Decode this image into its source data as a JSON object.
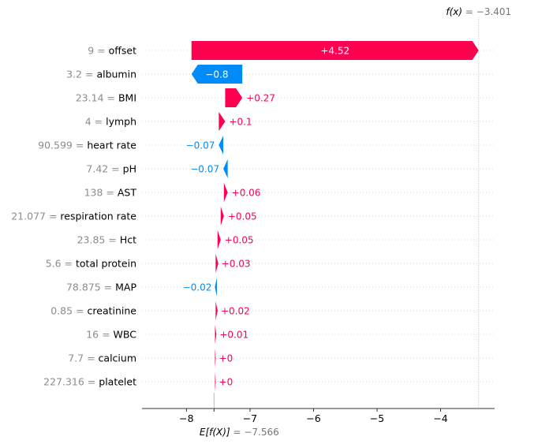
{
  "chart_data": {
    "type": "waterfall",
    "base_value": -7.566,
    "output_value": -3.401,
    "base_value_text": "= −7.566",
    "output_value_text": "= −3.401",
    "base_symbol": "E[f(X)]",
    "output_symbol": "f(x)",
    "xlim": [
      -8.7,
      -3.15
    ],
    "x_ticks": [
      -8,
      -7,
      -6,
      -5,
      -4
    ],
    "x_tick_labels": [
      "−8",
      "−7",
      "−6",
      "−5",
      "−4"
    ],
    "positive_color": "#ff0051",
    "negative_color": "#008bfb",
    "features": [
      {
        "name": "offset",
        "value": "9",
        "contribution": 4.52,
        "label": "+4.52"
      },
      {
        "name": "albumin",
        "value": "3.2",
        "contribution": -0.8,
        "label": "−0.8"
      },
      {
        "name": "BMI",
        "value": "23.14",
        "contribution": 0.27,
        "label": "+0.27"
      },
      {
        "name": "lymph",
        "value": "4",
        "contribution": 0.1,
        "label": "+0.1"
      },
      {
        "name": "heart rate",
        "value": "90.599",
        "contribution": -0.07,
        "label": "−0.07"
      },
      {
        "name": "pH",
        "value": "7.42",
        "contribution": -0.07,
        "label": "−0.07"
      },
      {
        "name": "AST",
        "value": "138",
        "contribution": 0.06,
        "label": "+0.06"
      },
      {
        "name": "respiration rate",
        "value": "21.077",
        "contribution": 0.05,
        "label": "+0.05"
      },
      {
        "name": "Hct",
        "value": "23.85",
        "contribution": 0.05,
        "label": "+0.05"
      },
      {
        "name": "total protein",
        "value": "5.6",
        "contribution": 0.03,
        "label": "+0.03"
      },
      {
        "name": "MAP",
        "value": "78.875",
        "contribution": -0.02,
        "label": "−0.02"
      },
      {
        "name": "creatinine",
        "value": "0.85",
        "contribution": 0.02,
        "label": "+0.02"
      },
      {
        "name": "WBC",
        "value": "16",
        "contribution": 0.01,
        "label": "+0.01"
      },
      {
        "name": "calcium",
        "value": "7.7",
        "contribution": 0.0,
        "label": "+0"
      },
      {
        "name": "platelet",
        "value": "227.316",
        "contribution": 0.0,
        "label": "+0"
      }
    ]
  }
}
